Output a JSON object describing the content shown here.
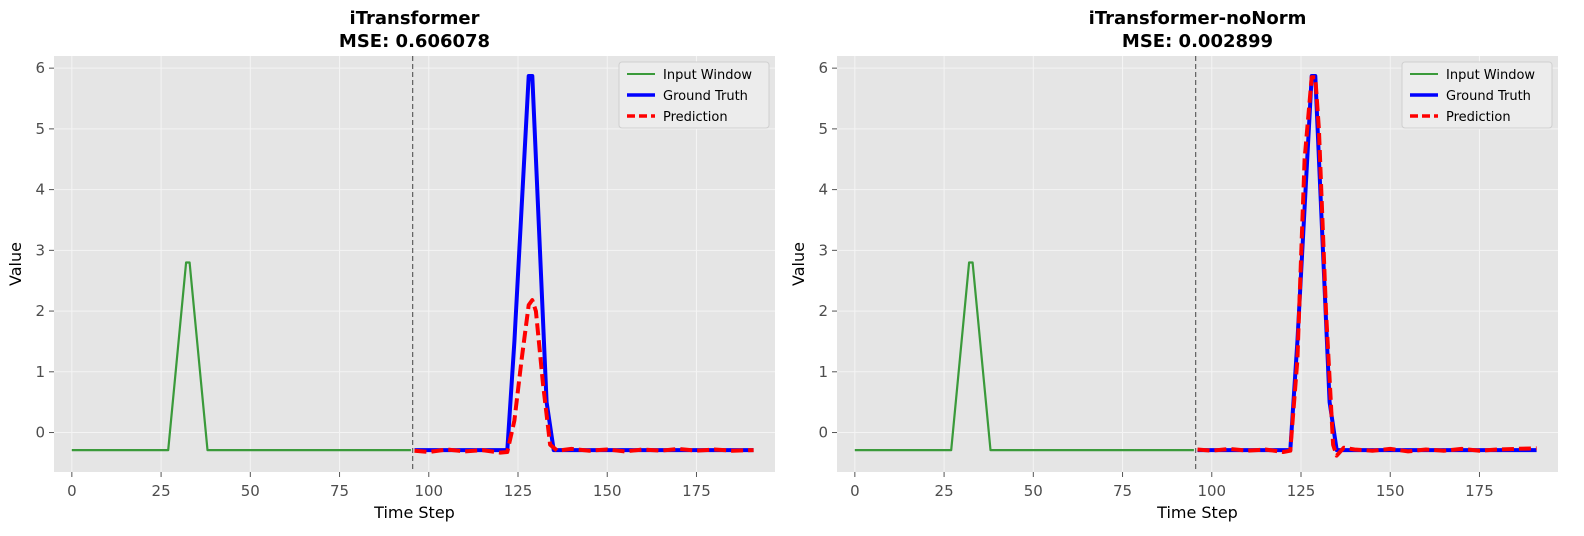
{
  "chart_data": [
    {
      "type": "line",
      "title": "iTransformer",
      "subtitle": "MSE: 0.606078",
      "xlabel": "Time Step",
      "ylabel": "Value",
      "xlim": [
        -5,
        197
      ],
      "ylim": [
        -0.65,
        6.2
      ],
      "xticks": [
        0,
        25,
        50,
        75,
        100,
        125,
        150,
        175
      ],
      "yticks": [
        0,
        1,
        2,
        3,
        4,
        5,
        6
      ],
      "grid": true,
      "legend_position": "top-right",
      "vline_x": 95.5,
      "series": [
        {
          "name": "Input Window",
          "color": "#3a9a3a",
          "style": "solid",
          "width": 2.2,
          "x": [
            0,
            27,
            32,
            33,
            38,
            95
          ],
          "y": [
            -0.29,
            -0.29,
            2.8,
            2.8,
            -0.29,
            -0.29
          ]
        },
        {
          "name": "Ground Truth",
          "color": "#0000ff",
          "style": "solid",
          "width": 4,
          "x": [
            96,
            122,
            124,
            128,
            129,
            133,
            135,
            191
          ],
          "y": [
            -0.29,
            -0.29,
            1.5,
            5.87,
            5.87,
            0.5,
            -0.29,
            -0.29
          ]
        },
        {
          "name": "Prediction",
          "color": "#ff0000",
          "style": "dashed",
          "width": 4,
          "x": [
            96,
            100,
            105,
            110,
            115,
            120,
            122,
            124,
            126,
            128,
            129,
            130,
            132,
            134,
            136,
            140,
            145,
            150,
            155,
            160,
            165,
            170,
            175,
            180,
            185,
            191
          ],
          "y": [
            -0.3,
            -0.32,
            -0.28,
            -0.31,
            -0.29,
            -0.33,
            -0.32,
            0.2,
            1.2,
            2.1,
            2.18,
            2.0,
            0.8,
            -0.2,
            -0.3,
            -0.27,
            -0.3,
            -0.28,
            -0.31,
            -0.28,
            -0.3,
            -0.27,
            -0.3,
            -0.28,
            -0.3,
            -0.29
          ]
        }
      ]
    },
    {
      "type": "line",
      "title": "iTransformer-noNorm",
      "subtitle": "MSE: 0.002899",
      "xlabel": "Time Step",
      "ylabel": "Value",
      "xlim": [
        -5,
        197
      ],
      "ylim": [
        -0.65,
        6.2
      ],
      "xticks": [
        0,
        25,
        50,
        75,
        100,
        125,
        150,
        175
      ],
      "yticks": [
        0,
        1,
        2,
        3,
        4,
        5,
        6
      ],
      "grid": true,
      "legend_position": "top-right",
      "vline_x": 95.5,
      "series": [
        {
          "name": "Input Window",
          "color": "#3a9a3a",
          "style": "solid",
          "width": 2.2,
          "x": [
            0,
            27,
            32,
            33,
            38,
            95
          ],
          "y": [
            -0.29,
            -0.29,
            2.8,
            2.8,
            -0.29,
            -0.29
          ]
        },
        {
          "name": "Ground Truth",
          "color": "#0000ff",
          "style": "solid",
          "width": 4,
          "x": [
            96,
            122,
            124,
            128,
            129,
            133,
            135,
            191
          ],
          "y": [
            -0.29,
            -0.29,
            1.5,
            5.87,
            5.87,
            0.5,
            -0.29,
            -0.29
          ]
        },
        {
          "name": "Prediction",
          "color": "#ff0000",
          "style": "dashed",
          "width": 4,
          "x": [
            96,
            100,
            105,
            110,
            115,
            120,
            122,
            124,
            126,
            128,
            129,
            130,
            132,
            134,
            135,
            137,
            140,
            145,
            150,
            155,
            160,
            165,
            170,
            175,
            180,
            185,
            191
          ],
          "y": [
            -0.28,
            -0.3,
            -0.27,
            -0.3,
            -0.28,
            -0.32,
            -0.3,
            1.2,
            4.5,
            5.85,
            5.85,
            5.0,
            2.0,
            -0.2,
            -0.38,
            -0.25,
            -0.28,
            -0.3,
            -0.27,
            -0.31,
            -0.28,
            -0.3,
            -0.27,
            -0.3,
            -0.28,
            -0.27,
            -0.26
          ]
        }
      ]
    }
  ]
}
